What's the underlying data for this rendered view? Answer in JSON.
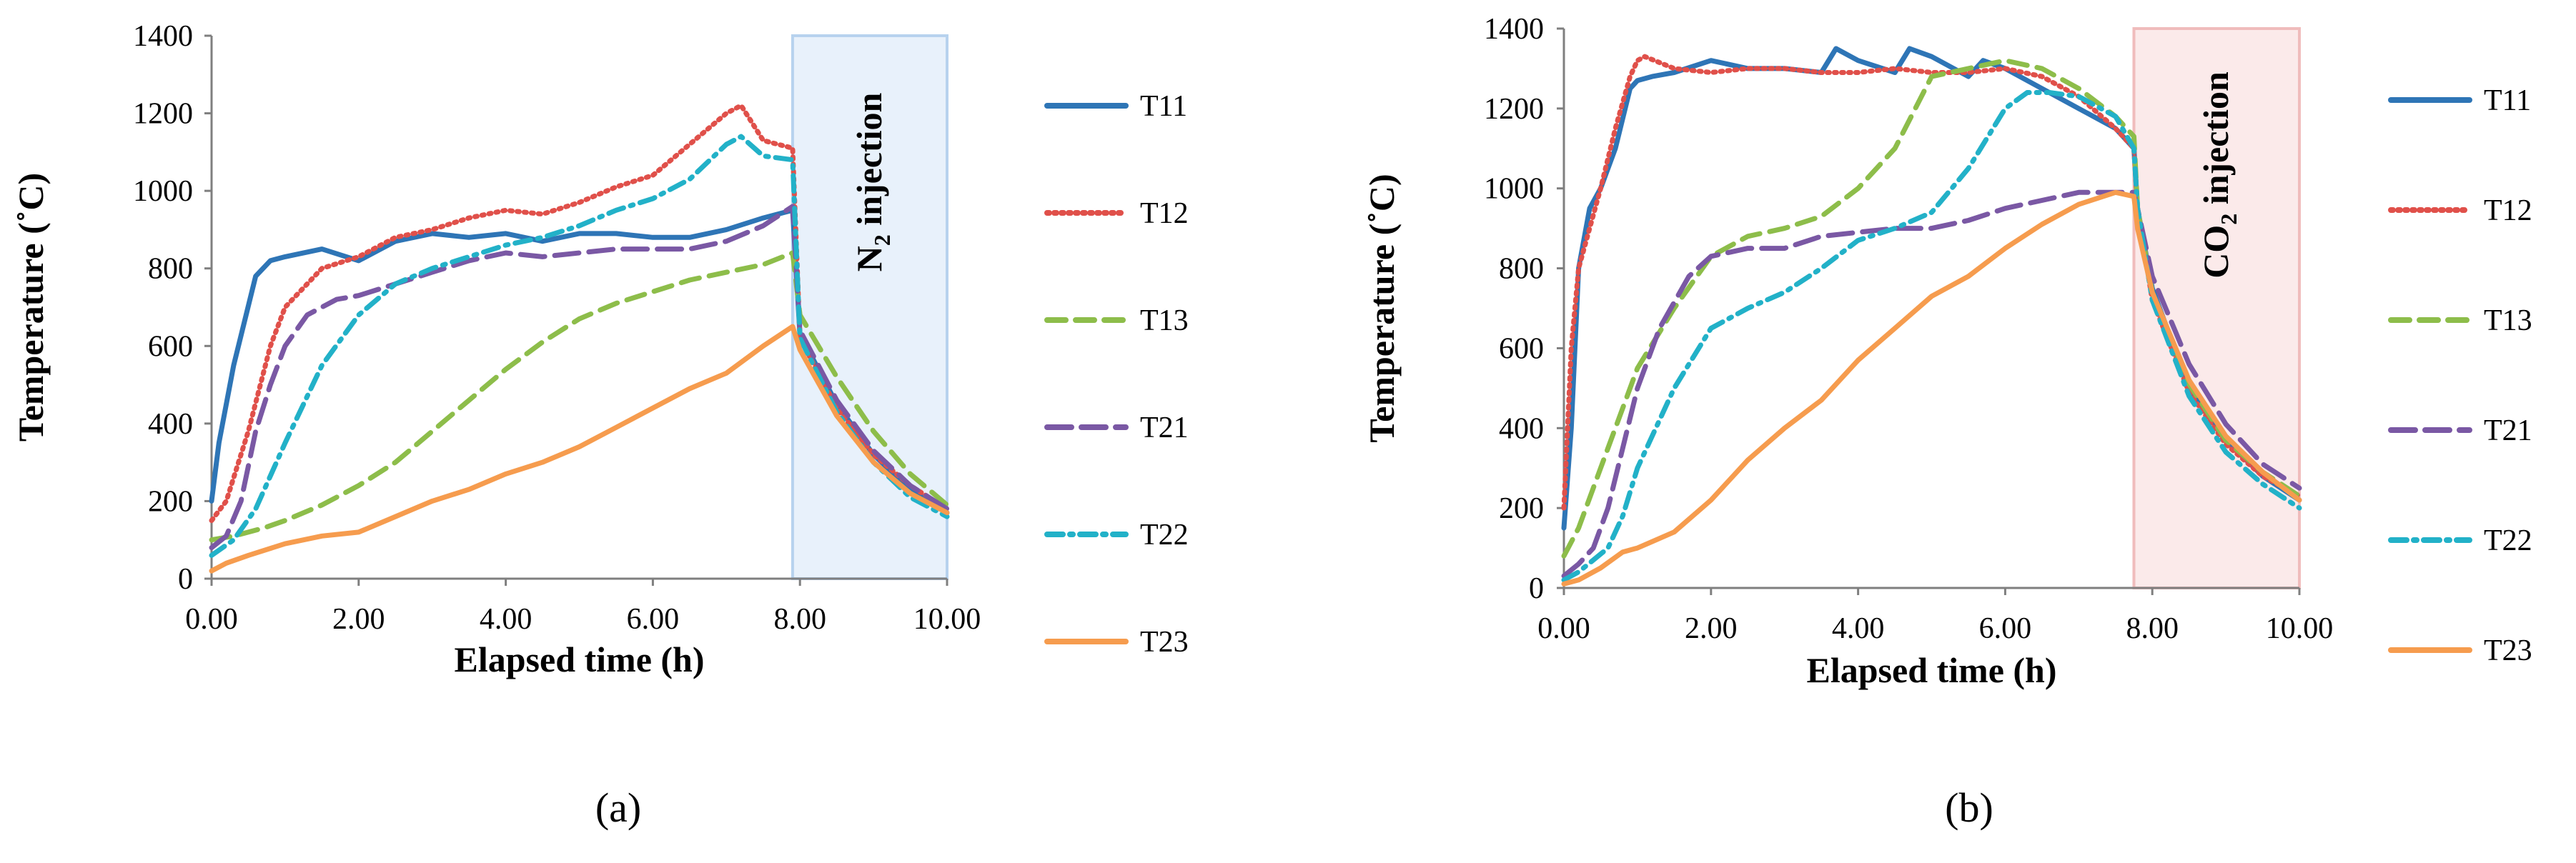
{
  "chart_data": [
    {
      "type": "line",
      "panel_label": "(a)",
      "xlabel": "Elapsed time (h)",
      "ylabel": "Temperature (˚C)",
      "xlim": [
        0,
        10
      ],
      "ylim": [
        0,
        1400
      ],
      "x_ticks": [
        "0.00",
        "2.00",
        "4.00",
        "6.00",
        "8.00",
        "10.00"
      ],
      "y_ticks": [
        "0",
        "200",
        "400",
        "600",
        "800",
        "1000",
        "1200",
        "1400"
      ],
      "injection": {
        "label_prefix": "N",
        "label_sub": "2",
        "label_suffix": " injection",
        "start": 7.9,
        "end": 10,
        "fill": "#e8f1fb",
        "stroke": "#b7d2ee"
      },
      "series": [
        {
          "name": "T11",
          "color": "#2e75b6",
          "dash": "",
          "x": [
            0,
            0.1,
            0.3,
            0.6,
            0.8,
            1.0,
            1.5,
            2.0,
            2.5,
            3.0,
            3.5,
            4.0,
            4.5,
            5.0,
            5.5,
            6.0,
            6.5,
            7.0,
            7.5,
            7.9,
            8.0,
            8.5,
            9.0,
            9.5,
            10.0
          ],
          "y": [
            200,
            350,
            550,
            780,
            820,
            830,
            850,
            820,
            870,
            890,
            880,
            890,
            870,
            890,
            890,
            880,
            880,
            900,
            930,
            950,
            630,
            450,
            320,
            230,
            170
          ]
        },
        {
          "name": "T12",
          "color": "#e0504a",
          "dash": "3,7",
          "x": [
            0,
            0.2,
            0.5,
            0.8,
            1.0,
            1.5,
            2.0,
            2.5,
            3.0,
            3.5,
            4.0,
            4.5,
            5.0,
            5.5,
            6.0,
            6.5,
            7.0,
            7.2,
            7.5,
            7.9,
            8.0,
            8.5,
            9.0,
            9.5,
            10.0
          ],
          "y": [
            150,
            200,
            380,
            600,
            700,
            800,
            830,
            880,
            900,
            930,
            950,
            940,
            970,
            1010,
            1040,
            1120,
            1200,
            1220,
            1130,
            1110,
            620,
            440,
            320,
            240,
            180
          ]
        },
        {
          "name": "T13",
          "color": "#8dbd4a",
          "dash": "26,14",
          "x": [
            0,
            0.3,
            0.7,
            1.0,
            1.5,
            2.0,
            2.5,
            3.0,
            3.5,
            4.0,
            4.5,
            5.0,
            5.5,
            6.0,
            6.5,
            7.0,
            7.5,
            7.9,
            8.0,
            8.5,
            9.0,
            9.5,
            10.0
          ],
          "y": [
            100,
            110,
            130,
            150,
            190,
            240,
            300,
            380,
            460,
            540,
            610,
            670,
            710,
            740,
            770,
            790,
            810,
            840,
            680,
            520,
            380,
            270,
            190
          ]
        },
        {
          "name": "T21",
          "color": "#7a58a4",
          "dash": "34,14",
          "x": [
            0,
            0.2,
            0.4,
            0.6,
            0.8,
            1.0,
            1.3,
            1.7,
            2.0,
            2.5,
            3.0,
            3.5,
            4.0,
            4.5,
            5.0,
            5.5,
            6.0,
            6.5,
            7.0,
            7.5,
            7.9,
            8.0,
            8.5,
            9.0,
            9.5,
            10.0
          ],
          "y": [
            80,
            110,
            200,
            380,
            500,
            600,
            680,
            720,
            730,
            760,
            790,
            820,
            840,
            830,
            840,
            850,
            850,
            850,
            870,
            910,
            960,
            640,
            460,
            330,
            240,
            180
          ]
        },
        {
          "name": "T22",
          "color": "#22b1c8",
          "dash": "22,10,4,10",
          "x": [
            0,
            0.3,
            0.6,
            1.0,
            1.5,
            2.0,
            2.5,
            3.0,
            3.5,
            4.0,
            4.5,
            5.0,
            5.5,
            6.0,
            6.5,
            7.0,
            7.2,
            7.5,
            7.9,
            8.0,
            8.5,
            9.0,
            9.5,
            10.0
          ],
          "y": [
            60,
            100,
            180,
            350,
            550,
            680,
            760,
            800,
            830,
            860,
            880,
            910,
            950,
            980,
            1030,
            1120,
            1140,
            1090,
            1080,
            620,
            430,
            300,
            210,
            160
          ]
        },
        {
          "name": "T23",
          "color": "#f69c4e",
          "dash": "",
          "x": [
            0,
            0.2,
            0.5,
            1.0,
            1.5,
            2.0,
            2.5,
            3.0,
            3.5,
            4.0,
            4.5,
            5.0,
            5.5,
            6.0,
            6.5,
            7.0,
            7.5,
            7.9,
            8.0,
            8.5,
            9.0,
            9.5,
            10.0
          ],
          "y": [
            20,
            40,
            60,
            90,
            110,
            120,
            160,
            200,
            230,
            270,
            300,
            340,
            390,
            440,
            490,
            530,
            600,
            650,
            590,
            420,
            300,
            220,
            170
          ]
        }
      ]
    },
    {
      "type": "line",
      "panel_label": "(b)",
      "xlabel": "Elapsed time (h)",
      "ylabel": "Temperature (˚C)",
      "xlim": [
        0,
        10
      ],
      "ylim": [
        0,
        1400
      ],
      "x_ticks": [
        "0.00",
        "2.00",
        "4.00",
        "6.00",
        "8.00",
        "10.00"
      ],
      "y_ticks": [
        "0",
        "200",
        "400",
        "600",
        "800",
        "1000",
        "1200",
        "1400"
      ],
      "injection": {
        "label_prefix": "CO",
        "label_sub": "2",
        "label_suffix": " injection",
        "start": 7.75,
        "end": 10,
        "fill": "#fbeaea",
        "stroke": "#f0bcbc"
      },
      "series": [
        {
          "name": "T11",
          "color": "#2e75b6",
          "dash": "",
          "x": [
            0,
            0.1,
            0.2,
            0.35,
            0.5,
            0.7,
            0.9,
            1.0,
            1.2,
            1.5,
            2.0,
            2.5,
            3.0,
            3.5,
            3.7,
            4.0,
            4.5,
            4.7,
            5.0,
            5.5,
            5.7,
            6.0,
            6.5,
            7.0,
            7.5,
            7.75,
            7.8,
            8.0,
            8.5,
            9.0,
            9.5,
            10.0
          ],
          "y": [
            150,
            400,
            800,
            950,
            1000,
            1100,
            1250,
            1270,
            1280,
            1290,
            1320,
            1300,
            1300,
            1290,
            1350,
            1320,
            1290,
            1350,
            1330,
            1280,
            1320,
            1300,
            1250,
            1200,
            1150,
            1100,
            950,
            750,
            500,
            370,
            280,
            220
          ]
        },
        {
          "name": "T12",
          "color": "#e0504a",
          "dash": "3,7",
          "x": [
            0,
            0.1,
            0.2,
            0.35,
            0.5,
            0.7,
            0.9,
            1.0,
            1.1,
            1.5,
            2.0,
            2.5,
            3.0,
            3.5,
            4.0,
            4.5,
            5.0,
            5.5,
            6.0,
            6.5,
            7.0,
            7.5,
            7.75,
            7.8,
            8.0,
            8.5,
            9.0,
            9.5,
            10.0
          ],
          "y": [
            200,
            600,
            800,
            900,
            1000,
            1150,
            1280,
            1320,
            1330,
            1300,
            1290,
            1300,
            1300,
            1290,
            1290,
            1300,
            1290,
            1290,
            1300,
            1280,
            1230,
            1150,
            1100,
            950,
            720,
            490,
            360,
            280,
            230
          ]
        },
        {
          "name": "T13",
          "color": "#8dbd4a",
          "dash": "26,14",
          "x": [
            0,
            0.2,
            0.5,
            0.8,
            1.0,
            1.5,
            2.0,
            2.5,
            3.0,
            3.5,
            4.0,
            4.5,
            5.0,
            5.5,
            6.0,
            6.5,
            7.0,
            7.5,
            7.75,
            7.8,
            8.0,
            8.5,
            9.0,
            9.5,
            10.0
          ],
          "y": [
            80,
            150,
            300,
            450,
            550,
            700,
            830,
            880,
            900,
            930,
            1000,
            1100,
            1280,
            1300,
            1320,
            1300,
            1250,
            1180,
            1130,
            950,
            740,
            510,
            370,
            290,
            230
          ]
        },
        {
          "name": "T21",
          "color": "#7a58a4",
          "dash": "34,14",
          "x": [
            0,
            0.2,
            0.4,
            0.6,
            0.8,
            1.0,
            1.3,
            1.7,
            2.0,
            2.5,
            3.0,
            3.5,
            4.0,
            4.5,
            5.0,
            5.5,
            6.0,
            6.5,
            7.0,
            7.5,
            7.75,
            7.8,
            8.0,
            8.5,
            9.0,
            9.5,
            10.0
          ],
          "y": [
            30,
            60,
            100,
            200,
            350,
            500,
            650,
            780,
            830,
            850,
            850,
            880,
            890,
            900,
            900,
            920,
            950,
            970,
            990,
            990,
            990,
            950,
            780,
            560,
            410,
            310,
            250
          ]
        },
        {
          "name": "T22",
          "color": "#22b1c8",
          "dash": "22,10,4,10",
          "x": [
            0,
            0.2,
            0.4,
            0.6,
            0.8,
            1.0,
            1.5,
            2.0,
            2.5,
            3.0,
            3.5,
            4.0,
            4.5,
            5.0,
            5.5,
            6.0,
            6.3,
            6.6,
            7.0,
            7.5,
            7.75,
            7.8,
            8.0,
            8.5,
            9.0,
            9.5,
            10.0
          ],
          "y": [
            20,
            40,
            70,
            100,
            180,
            300,
            500,
            650,
            700,
            740,
            800,
            870,
            900,
            940,
            1050,
            1200,
            1240,
            1240,
            1230,
            1180,
            1100,
            950,
            720,
            480,
            340,
            260,
            200
          ]
        },
        {
          "name": "T23",
          "color": "#f69c4e",
          "dash": "",
          "x": [
            0,
            0.2,
            0.5,
            0.8,
            1.0,
            1.5,
            2.0,
            2.5,
            3.0,
            3.5,
            4.0,
            4.5,
            5.0,
            5.5,
            6.0,
            6.5,
            7.0,
            7.5,
            7.75,
            7.8,
            8.0,
            8.5,
            9.0,
            9.5,
            10.0
          ],
          "y": [
            10,
            20,
            50,
            90,
            100,
            140,
            220,
            320,
            400,
            470,
            570,
            650,
            730,
            780,
            850,
            910,
            960,
            990,
            980,
            900,
            740,
            520,
            380,
            290,
            220
          ]
        }
      ]
    }
  ]
}
